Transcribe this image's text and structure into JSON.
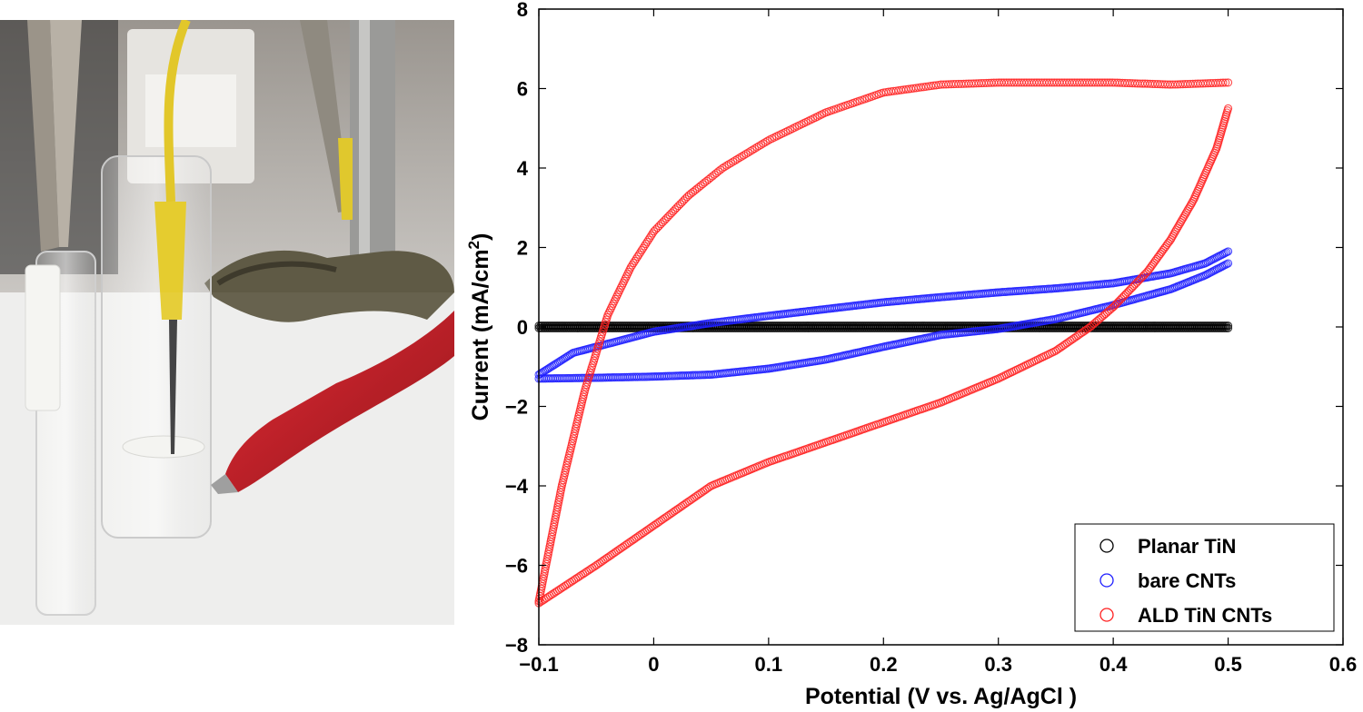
{
  "chart_data": {
    "type": "scatter",
    "xlabel": "Potential (V vs. Ag/AgCl )",
    "ylabel_main": "Current (mA/cm",
    "ylabel_sup": "2",
    "ylabel_close": ")",
    "xlim": [
      -0.1,
      0.6
    ],
    "ylim": [
      -8,
      8
    ],
    "xticks": [
      -0.1,
      0,
      0.1,
      0.2,
      0.3,
      0.4,
      0.5,
      0.6
    ],
    "xtick_labels": [
      "−0.1",
      "0",
      "0.1",
      "0.2",
      "0.3",
      "0.4",
      "0.5",
      "0.6"
    ],
    "yticks": [
      -8,
      -6,
      -4,
      -2,
      0,
      2,
      4,
      6,
      8
    ],
    "ytick_labels": [
      "−8",
      "−6",
      "−4",
      "−2",
      "0",
      "2",
      "4",
      "6",
      "8"
    ],
    "grid": false,
    "legend_position": "bottom-right",
    "series": [
      {
        "name": "Planar TiN",
        "color": "#000000",
        "upper": [
          [
            -0.1,
            0.03
          ],
          [
            0.5,
            0.03
          ]
        ],
        "lower": [
          [
            0.5,
            -0.03
          ],
          [
            -0.1,
            -0.03
          ]
        ]
      },
      {
        "name": "bare CNTs",
        "color": "#1f1fff",
        "upper": [
          [
            -0.1,
            -1.2
          ],
          [
            -0.07,
            -0.65
          ],
          [
            -0.03,
            -0.35
          ],
          [
            0.0,
            -0.12
          ],
          [
            0.05,
            0.1
          ],
          [
            0.1,
            0.28
          ],
          [
            0.15,
            0.45
          ],
          [
            0.2,
            0.62
          ],
          [
            0.25,
            0.75
          ],
          [
            0.3,
            0.87
          ],
          [
            0.35,
            0.97
          ],
          [
            0.4,
            1.1
          ],
          [
            0.45,
            1.35
          ],
          [
            0.48,
            1.6
          ],
          [
            0.5,
            1.9
          ]
        ],
        "lower": [
          [
            0.5,
            1.6
          ],
          [
            0.48,
            1.3
          ],
          [
            0.45,
            0.95
          ],
          [
            0.4,
            0.55
          ],
          [
            0.35,
            0.2
          ],
          [
            0.3,
            -0.05
          ],
          [
            0.25,
            -0.2
          ],
          [
            0.2,
            -0.5
          ],
          [
            0.15,
            -0.82
          ],
          [
            0.1,
            -1.05
          ],
          [
            0.05,
            -1.2
          ],
          [
            0.0,
            -1.25
          ],
          [
            -0.05,
            -1.28
          ],
          [
            -0.1,
            -1.3
          ]
        ]
      },
      {
        "name": "ALD TiN CNTs",
        "color": "#ff2020",
        "upper": [
          [
            -0.1,
            -6.9
          ],
          [
            -0.08,
            -4.0
          ],
          [
            -0.06,
            -1.6
          ],
          [
            -0.04,
            0.3
          ],
          [
            -0.02,
            1.5
          ],
          [
            0.0,
            2.4
          ],
          [
            0.03,
            3.3
          ],
          [
            0.06,
            4.0
          ],
          [
            0.1,
            4.7
          ],
          [
            0.15,
            5.4
          ],
          [
            0.2,
            5.9
          ],
          [
            0.25,
            6.1
          ],
          [
            0.3,
            6.15
          ],
          [
            0.35,
            6.15
          ],
          [
            0.4,
            6.15
          ],
          [
            0.45,
            6.1
          ],
          [
            0.5,
            6.15
          ]
        ],
        "lower": [
          [
            0.5,
            5.5
          ],
          [
            0.49,
            4.5
          ],
          [
            0.47,
            3.2
          ],
          [
            0.45,
            2.2
          ],
          [
            0.43,
            1.4
          ],
          [
            0.4,
            0.5
          ],
          [
            0.38,
            0.0
          ],
          [
            0.35,
            -0.6
          ],
          [
            0.3,
            -1.3
          ],
          [
            0.25,
            -1.9
          ],
          [
            0.2,
            -2.4
          ],
          [
            0.15,
            -2.9
          ],
          [
            0.1,
            -3.4
          ],
          [
            0.05,
            -4.0
          ],
          [
            0.0,
            -5.0
          ],
          [
            -0.05,
            -6.0
          ],
          [
            -0.1,
            -6.95
          ]
        ]
      }
    ]
  }
}
